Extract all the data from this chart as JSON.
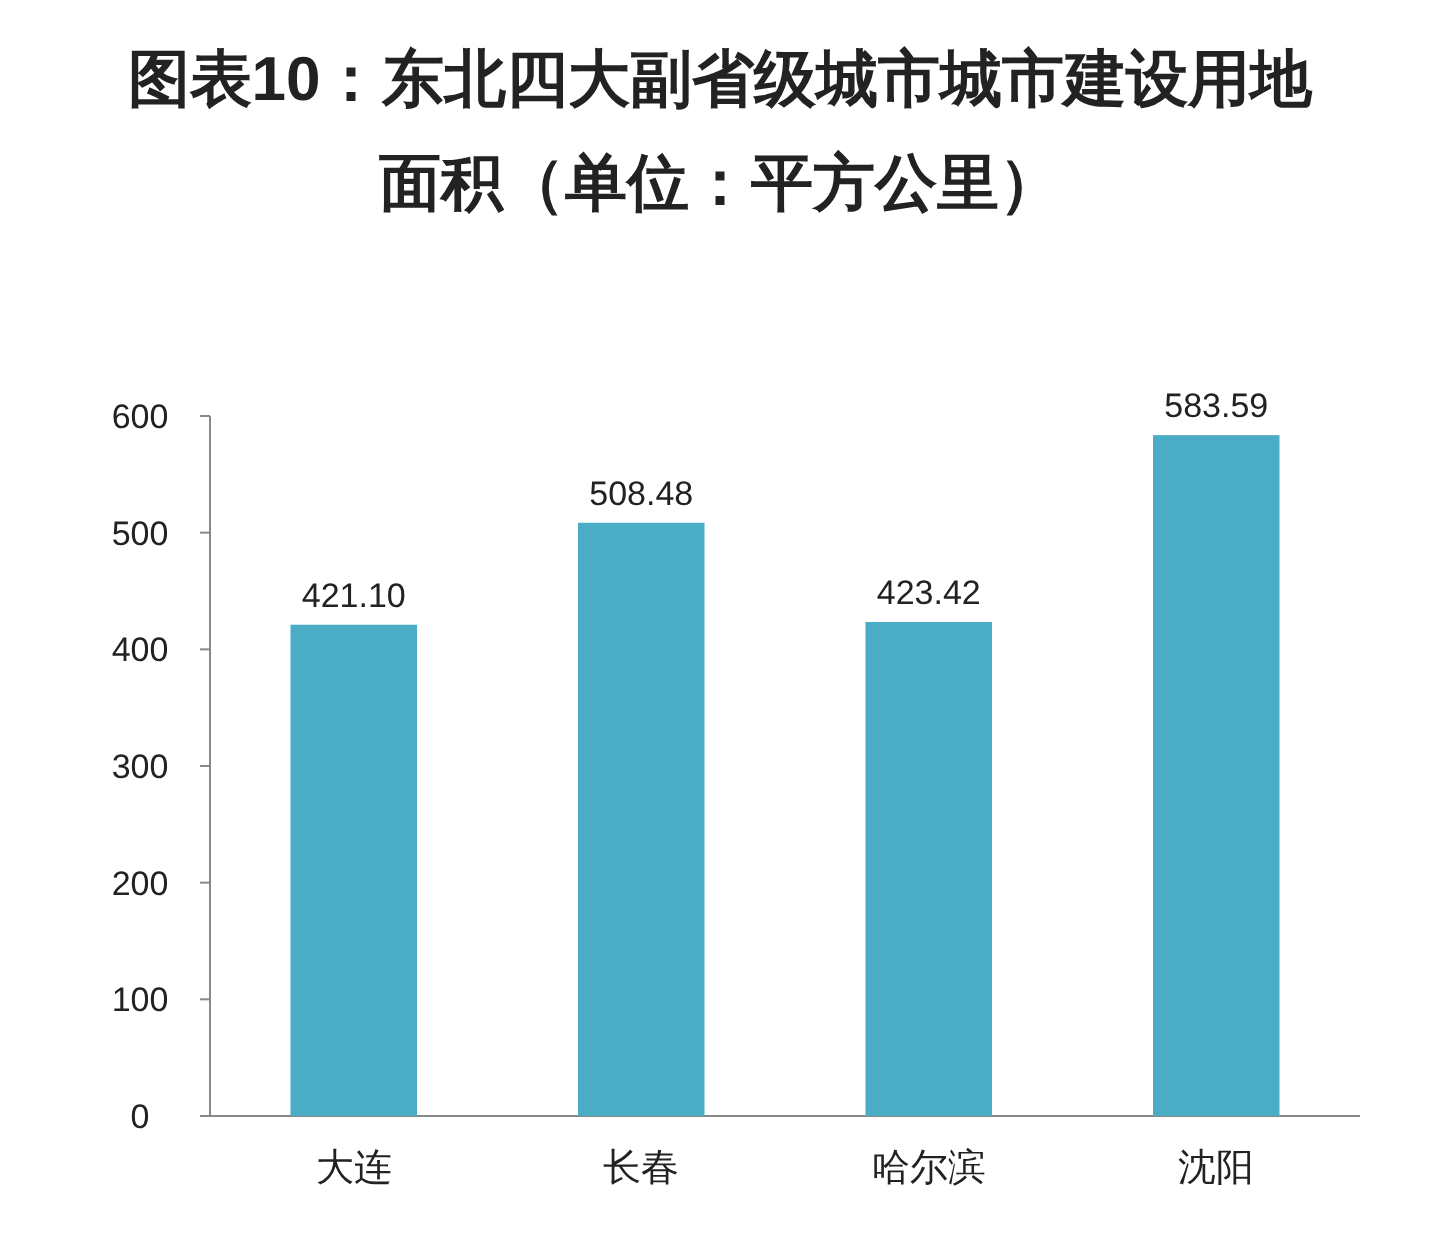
{
  "chart_data": {
    "type": "bar",
    "title": "图表10：东北四大副省级城市城市建设用地面积（单位：平方公里）",
    "categories": [
      "大连",
      "长春",
      "哈尔滨",
      "沈阳"
    ],
    "values": [
      421.1,
      508.48,
      423.42,
      583.59
    ],
    "value_labels": [
      "421.10",
      "508.48",
      "423.42",
      "583.59"
    ],
    "color": "#4bacc6",
    "ylim": [
      0,
      600
    ],
    "yticks": [
      0,
      100,
      200,
      300,
      400,
      500,
      600
    ]
  }
}
